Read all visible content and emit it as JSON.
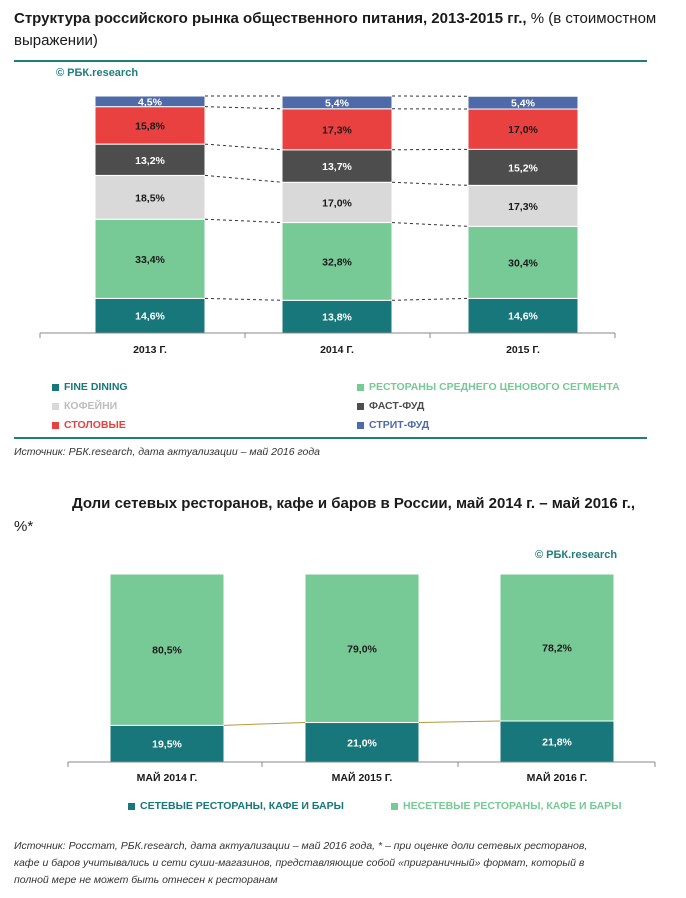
{
  "chart1": {
    "title": "Структура российского рынка общественного питания, 2013-2015 гг.,",
    "title_suffix": " % (в стоимостном выражении)",
    "copyright": "© РБК.research",
    "source": "Источник: РБК.research, дата актуализации – май 2016 года",
    "chart_data": {
      "type": "bar",
      "stacked": true,
      "categories": [
        "2013 Г.",
        "2014 Г.",
        "2015 Г."
      ],
      "series": [
        {
          "name": "FINE DINING",
          "color": "#18777a",
          "values": [
            14.6,
            13.8,
            14.6
          ],
          "labels": [
            "14,6%",
            "13,8%",
            "14,6%"
          ]
        },
        {
          "name": "РЕСТОРАНЫ СРЕДНЕГО ЦЕНОВОГО СЕГМЕНТА",
          "color": "#77c995",
          "values": [
            33.4,
            32.8,
            30.4
          ],
          "labels": [
            "33,4%",
            "32,8%",
            "30,4%"
          ]
        },
        {
          "name": "КОФЕЙНИ",
          "color": "#d9d9d9",
          "values": [
            18.5,
            17.0,
            17.3
          ],
          "labels": [
            "18,5%",
            "17,0%",
            "17,3%"
          ]
        },
        {
          "name": "ФАСТ-ФУД",
          "color": "#4d4d4d",
          "values": [
            13.2,
            13.7,
            15.2
          ],
          "labels": [
            "13,2%",
            "13,7%",
            "15,2%"
          ]
        },
        {
          "name": "СТОЛОВЫЕ",
          "color": "#e94040",
          "values": [
            15.8,
            17.3,
            17.0
          ],
          "labels": [
            "15,8%",
            "17,3%",
            "17,0%"
          ]
        },
        {
          "name": "СТРИТ-ФУД",
          "color": "#4f6aa8",
          "values": [
            4.5,
            5.4,
            5.4
          ],
          "labels": [
            "4,5%",
            "5,4%",
            "5,4%"
          ]
        }
      ],
      "ylim": [
        0,
        100
      ],
      "legend": [
        {
          "label": "FINE DINING",
          "color": "#18777a"
        },
        {
          "label": "РЕСТОРАНЫ СРЕДНЕГО ЦЕНОВОГО СЕГМЕНТА",
          "color": "#77c995"
        },
        {
          "label": "КОФЕЙНИ",
          "color": "#d9d9d9"
        },
        {
          "label": "ФАСТ-ФУД",
          "color": "#4d4d4d"
        },
        {
          "label": "СТОЛОВЫЕ",
          "color": "#e94040"
        },
        {
          "label": "СТРИТ-ФУД",
          "color": "#4f6aa8"
        }
      ]
    }
  },
  "chart2": {
    "title": "Доли сетевых ресторанов, кафе и баров в России, май 2014 г. – май 2016 г.,",
    "title_suffix": "%*",
    "copyright": "© РБК.research",
    "source_line1": "Источник: Росстат, РБК.research, дата актуализации – май 2016 года, * – при оценке доли сетевых ресторанов,",
    "source_line2": "кафе и баров учитывались и сети суши-магазинов, представляющие собой «приграничный» формат, который в",
    "source_line3": "полной мере не может быть отнесен к ресторанам",
    "chart_data": {
      "type": "bar",
      "stacked": true,
      "categories": [
        "МАЙ 2014 Г.",
        "МАЙ 2015 Г.",
        "МАЙ 2016 Г."
      ],
      "series": [
        {
          "name": "СЕТЕВЫЕ РЕСТОРАНЫ, КАФЕ И БАРЫ",
          "color": "#18777a",
          "values": [
            19.5,
            21.0,
            21.8
          ],
          "labels": [
            "19,5%",
            "21,0%",
            "21,8%"
          ]
        },
        {
          "name": "НЕСЕТЕВЫЕ РЕСТОРАНЫ, КАФЕ И БАРЫ",
          "color": "#77c995",
          "values": [
            80.5,
            79.0,
            78.2
          ],
          "labels": [
            "80,5%",
            "79,0%",
            "78,2%"
          ]
        }
      ],
      "ylim": [
        0,
        100
      ],
      "legend": [
        {
          "label": "СЕТЕВЫЕ РЕСТОРАНЫ, КАФЕ И БАРЫ",
          "color": "#18777a"
        },
        {
          "label": "НЕСЕТЕВЫЕ РЕСТОРАНЫ, КАФЕ И БАРЫ",
          "color": "#77c995"
        }
      ]
    }
  }
}
